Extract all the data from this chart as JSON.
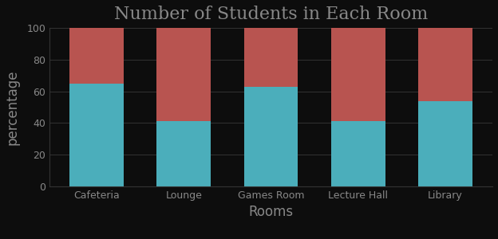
{
  "title": "Number of Students in Each Room",
  "xlabel": "Rooms",
  "ylabel": "percentage",
  "categories": [
    "Cafeteria",
    "Lounge",
    "Games Room",
    "Lecture Hall",
    "Library"
  ],
  "series1_values": [
    65,
    41,
    63,
    41,
    54
  ],
  "series2_values": [
    35,
    59,
    37,
    59,
    46
  ],
  "color1": "#4BAEBB",
  "color2": "#B85450",
  "ylim": [
    0,
    100
  ],
  "yticks": [
    0,
    20,
    40,
    60,
    80,
    100
  ],
  "background_color": "#0d0d0d",
  "plot_bg_color": "#0d0d0d",
  "text_color": "#888888",
  "grid_color": "#333333",
  "title_fontsize": 16,
  "label_fontsize": 12,
  "tick_fontsize": 9
}
